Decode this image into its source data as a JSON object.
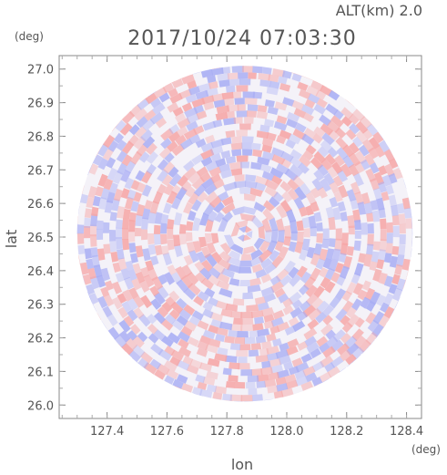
{
  "header": {
    "altitude_label": "ALT(km) 2.0",
    "timestamp": "2017/10/24 07:03:30"
  },
  "colors": {
    "positive": "#f6a6a6",
    "negative": "#a9aef4",
    "frame": "#888888",
    "text": "#555555"
  },
  "chart_data": {
    "type": "heatmap",
    "description_shape": "circular radar scan (PPI), red/blue diverging field",
    "xlabel": "lon",
    "ylabel": "lat",
    "x_unit": "(deg)",
    "y_unit": "(deg)",
    "xlim": [
      127.24,
      128.45
    ],
    "ylim": [
      25.96,
      27.04
    ],
    "x_ticks": [
      "127.4",
      "127.6",
      "127.8",
      "128.0",
      "128.2",
      "128.4"
    ],
    "x_tick_values": [
      127.4,
      127.6,
      127.8,
      128.0,
      128.2,
      128.4
    ],
    "y_ticks": [
      "27.0",
      "26.9",
      "26.8",
      "26.7",
      "26.6",
      "26.5",
      "26.4",
      "26.3",
      "26.2",
      "26.1",
      "26.0"
    ],
    "y_tick_values": [
      27.0,
      26.9,
      26.8,
      26.7,
      26.6,
      26.5,
      26.4,
      26.3,
      26.2,
      26.1,
      26.0
    ],
    "center": {
      "lon": 127.86,
      "lat": 26.51
    },
    "radius_deg_lat": 0.5,
    "grid": false
  }
}
